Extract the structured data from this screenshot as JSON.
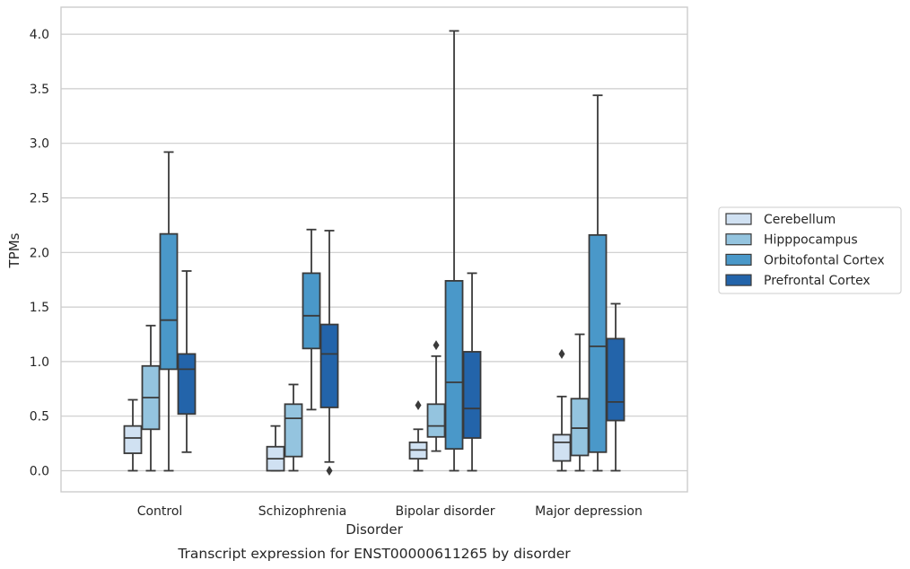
{
  "chart_data": {
    "type": "box",
    "xlabel": "Disorder",
    "ylabel": "TPMs",
    "caption": "Transcript expression for ENST00000611265 by disorder",
    "ylim": [
      -0.2,
      4.25
    ],
    "yticks": [
      0.0,
      0.5,
      1.0,
      1.5,
      2.0,
      2.5,
      3.0,
      3.5,
      4.0
    ],
    "ytick_labels": [
      "0.0",
      "0.5",
      "1.0",
      "1.5",
      "2.0",
      "2.5",
      "3.0",
      "3.5",
      "4.0"
    ],
    "grid": true,
    "legend_position": "right",
    "categories": [
      "Control",
      "Schizophrenia",
      "Bipolar disorder",
      "Major depression"
    ],
    "series": [
      {
        "name": "Cerebellum",
        "color": "#d0e1f2",
        "boxes": [
          {
            "whisker_low": 0.0,
            "q1": 0.16,
            "median": 0.3,
            "q3": 0.41,
            "whisker_high": 0.65,
            "outliers": []
          },
          {
            "whisker_low": 0.0,
            "q1": 0.0,
            "median": 0.11,
            "q3": 0.22,
            "whisker_high": 0.41,
            "outliers": []
          },
          {
            "whisker_low": 0.0,
            "q1": 0.11,
            "median": 0.19,
            "q3": 0.26,
            "whisker_high": 0.38,
            "outliers": [
              0.6
            ]
          },
          {
            "whisker_low": 0.0,
            "q1": 0.09,
            "median": 0.26,
            "q3": 0.33,
            "whisker_high": 0.68,
            "outliers": [
              1.07
            ]
          }
        ]
      },
      {
        "name": "Hipppocampus",
        "color": "#94c4df",
        "boxes": [
          {
            "whisker_low": 0.0,
            "q1": 0.38,
            "median": 0.67,
            "q3": 0.96,
            "whisker_high": 1.33,
            "outliers": []
          },
          {
            "whisker_low": 0.0,
            "q1": 0.13,
            "median": 0.48,
            "q3": 0.61,
            "whisker_high": 0.79,
            "outliers": []
          },
          {
            "whisker_low": 0.18,
            "q1": 0.31,
            "median": 0.41,
            "q3": 0.61,
            "whisker_high": 1.05,
            "outliers": [
              1.15
            ]
          },
          {
            "whisker_low": 0.0,
            "q1": 0.14,
            "median": 0.39,
            "q3": 0.66,
            "whisker_high": 1.25,
            "outliers": []
          }
        ]
      },
      {
        "name": "Orbitofontal Cortex",
        "color": "#4a98c9",
        "boxes": [
          {
            "whisker_low": 0.0,
            "q1": 0.93,
            "median": 1.38,
            "q3": 2.17,
            "whisker_high": 2.92,
            "outliers": []
          },
          {
            "whisker_low": 0.56,
            "q1": 1.12,
            "median": 1.42,
            "q3": 1.81,
            "whisker_high": 2.21,
            "outliers": []
          },
          {
            "whisker_low": 0.0,
            "q1": 0.2,
            "median": 0.81,
            "q3": 1.74,
            "whisker_high": 4.03,
            "outliers": []
          },
          {
            "whisker_low": 0.0,
            "q1": 0.17,
            "median": 1.14,
            "q3": 2.16,
            "whisker_high": 3.44,
            "outliers": []
          }
        ]
      },
      {
        "name": "Prefrontal Cortex",
        "color": "#2364aa",
        "boxes": [
          {
            "whisker_low": 0.17,
            "q1": 0.52,
            "median": 0.93,
            "q3": 1.07,
            "whisker_high": 1.83,
            "outliers": []
          },
          {
            "whisker_low": 0.08,
            "q1": 0.58,
            "median": 1.07,
            "q3": 1.34,
            "whisker_high": 2.2,
            "outliers": [
              0.0
            ]
          },
          {
            "whisker_low": 0.0,
            "q1": 0.3,
            "median": 0.57,
            "q3": 1.09,
            "whisker_high": 1.81,
            "outliers": []
          },
          {
            "whisker_low": 0.0,
            "q1": 0.46,
            "median": 0.63,
            "q3": 1.21,
            "whisker_high": 1.53,
            "outliers": []
          }
        ]
      }
    ]
  }
}
